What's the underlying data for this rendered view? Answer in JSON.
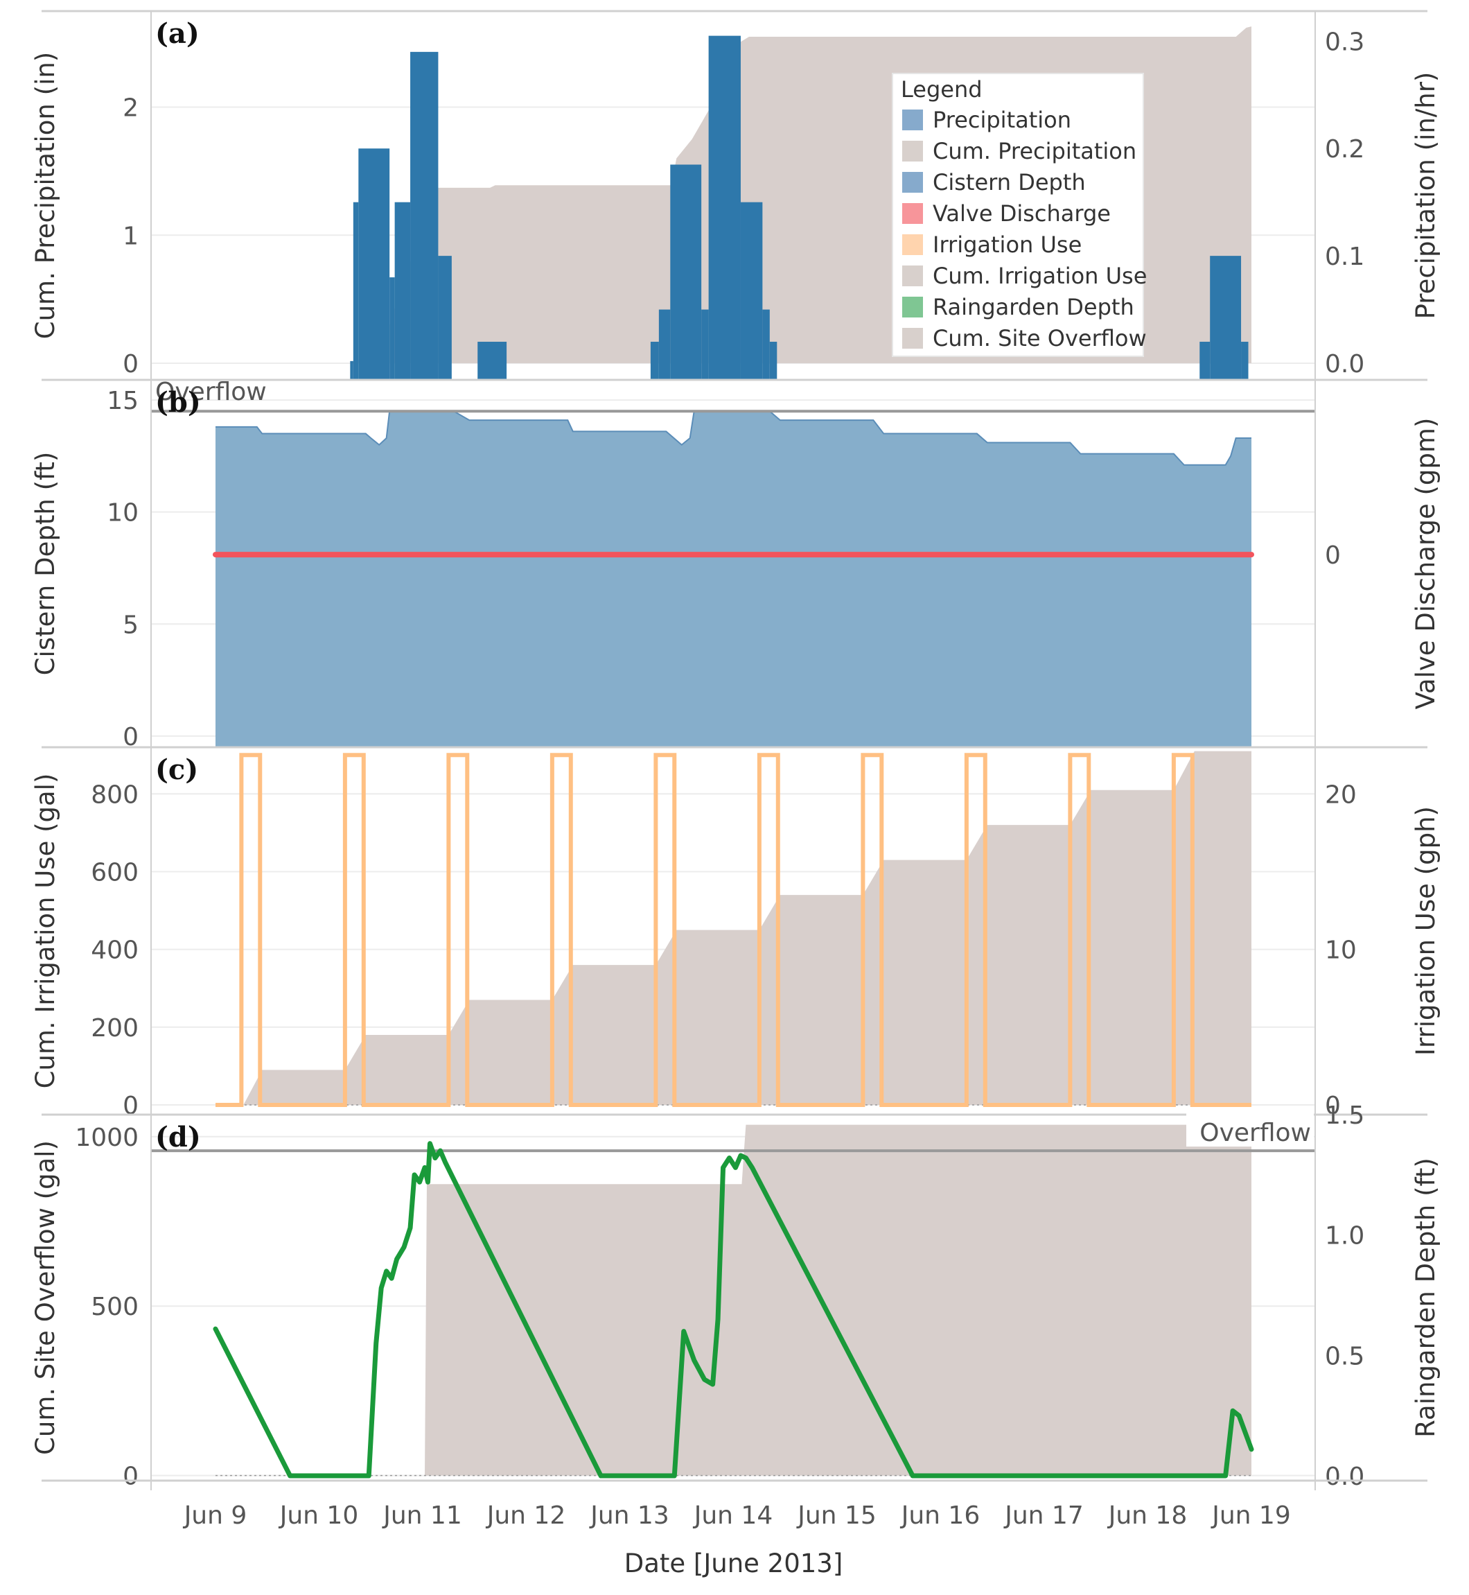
{
  "colors": {
    "precip": "#2e78ab",
    "cum": "#d8cfcc",
    "cistern": "#86aecb",
    "cisternLine": "#5b8db8",
    "valve": "#f2545c",
    "irrig": "#ffc083",
    "raingarden": "#1a9a3a",
    "grid": "#ececec",
    "frame": "#d0d0d0",
    "overflowLine": "#999999",
    "legend_swatches": {
      "precipitation": "#86aacc",
      "cum_precipitation": "#d8d0cc",
      "cistern_depth": "#86aacc",
      "valve_discharge": "#f7959a",
      "irrigation_use": "#ffd4ae",
      "cum_irrigation_use": "#d8d0cc",
      "raingarden_depth": "#7fc693",
      "cum_site_overflow": "#d8d0cc"
    }
  },
  "legend": {
    "title": "Legend",
    "items": [
      {
        "key": "precipitation",
        "label": "Precipitation"
      },
      {
        "key": "cum_precipitation",
        "label": "Cum. Precipitation"
      },
      {
        "key": "cistern_depth",
        "label": "Cistern Depth"
      },
      {
        "key": "valve_discharge",
        "label": "Valve Discharge"
      },
      {
        "key": "irrigation_use",
        "label": "Irrigation Use"
      },
      {
        "key": "cum_irrigation_use",
        "label": "Cum. Irrigation Use"
      },
      {
        "key": "raingarden_depth",
        "label": "Raingarden Depth"
      },
      {
        "key": "cum_site_overflow",
        "label": "Cum. Site Overflow"
      }
    ]
  },
  "chart_data": {
    "type": "multi-panel time series",
    "xlabel": "Date [June 2013]",
    "x_domain": [
      9,
      19
    ],
    "x_ticks": [
      {
        "v": 9,
        "label": "Jun 9"
      },
      {
        "v": 10,
        "label": "Jun 10"
      },
      {
        "v": 11,
        "label": "Jun 11"
      },
      {
        "v": 12,
        "label": "Jun 12"
      },
      {
        "v": 13,
        "label": "Jun 13"
      },
      {
        "v": 14,
        "label": "Jun 14"
      },
      {
        "v": 15,
        "label": "Jun 15"
      },
      {
        "v": 16,
        "label": "Jun 16"
      },
      {
        "v": 17,
        "label": "Jun 17"
      },
      {
        "v": 18,
        "label": "Jun 18"
      },
      {
        "v": 19,
        "label": "Jun 19"
      }
    ],
    "panels": [
      {
        "id": "a",
        "label": "(a)",
        "ylabel_left": "Cum. Precipitation (in)",
        "ylabel_right": "Precipitation (in/hr)",
        "ylim_left": [
          -0.13,
          2.75
        ],
        "ylim_right": [
          -0.0155,
          0.328
        ],
        "yticks_left": [
          {
            "v": 0,
            "label": "0"
          },
          {
            "v": 1,
            "label": "1"
          },
          {
            "v": 2,
            "label": "2"
          }
        ],
        "yticks_right": [
          {
            "v": 0.0,
            "label": "0.0"
          },
          {
            "v": 0.1,
            "label": "0.1"
          },
          {
            "v": 0.2,
            "label": "0.2"
          },
          {
            "v": 0.3,
            "label": "0.3"
          }
        ],
        "series": [
          {
            "name": "Cum. Precipitation",
            "kind": "area",
            "axis": "left",
            "points": [
              [
                9,
                0
              ],
              [
                10.3,
                0
              ],
              [
                10.6,
                0.1
              ],
              [
                10.8,
                0.6
              ],
              [
                11.05,
                1.2
              ],
              [
                11.15,
                1.37
              ],
              [
                11.65,
                1.37
              ],
              [
                11.7,
                1.39
              ],
              [
                13.4,
                1.39
              ],
              [
                13.45,
                1.6
              ],
              [
                13.6,
                1.75
              ],
              [
                13.85,
                2.1
              ],
              [
                14.05,
                2.5
              ],
              [
                14.15,
                2.55
              ],
              [
                18.85,
                2.55
              ],
              [
                18.95,
                2.62
              ],
              [
                19,
                2.63
              ]
            ]
          },
          {
            "name": "Precipitation",
            "kind": "bars",
            "axis": "right",
            "bars": [
              [
                10.3,
                10.33,
                0.002
              ],
              [
                10.33,
                10.38,
                0.15
              ],
              [
                10.38,
                10.68,
                0.2
              ],
              [
                10.68,
                10.73,
                0.08
              ],
              [
                10.73,
                10.88,
                0.15
              ],
              [
                10.88,
                11.15,
                0.29
              ],
              [
                11.15,
                11.28,
                0.1
              ],
              [
                11.53,
                11.81,
                0.02
              ],
              [
                13.2,
                13.28,
                0.02
              ],
              [
                13.28,
                13.39,
                0.05
              ],
              [
                13.39,
                13.69,
                0.185
              ],
              [
                13.69,
                13.76,
                0.05
              ],
              [
                13.76,
                14.07,
                0.305
              ],
              [
                14.07,
                14.28,
                0.15
              ],
              [
                14.28,
                14.35,
                0.05
              ],
              [
                14.35,
                14.42,
                0.02
              ],
              [
                18.5,
                18.6,
                0.02
              ],
              [
                18.6,
                18.9,
                0.1
              ],
              [
                18.9,
                18.97,
                0.02
              ]
            ]
          }
        ]
      },
      {
        "id": "b",
        "label": "(b)",
        "annotation": "Overflow",
        "overflow_level": 14.5,
        "ylabel_left": "Cistern Depth (ft)",
        "ylabel_right": "Valve Discharge (gpm)",
        "ylim_left": [
          -0.5,
          15.9
        ],
        "yticks_left": [
          {
            "v": 0,
            "label": "0"
          },
          {
            "v": 5,
            "label": "5"
          },
          {
            "v": 10,
            "label": "10"
          },
          {
            "v": 15,
            "label": "15"
          }
        ],
        "yticks_right": [
          {
            "label": "0",
            "left_equiv": 8.1
          }
        ],
        "series": [
          {
            "name": "Cistern Depth",
            "kind": "area",
            "axis": "left",
            "points": [
              [
                9,
                13.8
              ],
              [
                9.4,
                13.8
              ],
              [
                9.45,
                13.5
              ],
              [
                10.45,
                13.5
              ],
              [
                10.5,
                13.3
              ],
              [
                10.58,
                13.0
              ],
              [
                10.65,
                13.3
              ],
              [
                10.68,
                14.5
              ],
              [
                11.3,
                14.5
              ],
              [
                11.45,
                14.1
              ],
              [
                12.4,
                14.1
              ],
              [
                12.45,
                13.6
              ],
              [
                13.35,
                13.6
              ],
              [
                13.45,
                13.2
              ],
              [
                13.5,
                13.0
              ],
              [
                13.58,
                13.3
              ],
              [
                13.62,
                14.5
              ],
              [
                14.35,
                14.5
              ],
              [
                14.45,
                14.1
              ],
              [
                15.35,
                14.1
              ],
              [
                15.45,
                13.5
              ],
              [
                16.35,
                13.5
              ],
              [
                16.45,
                13.1
              ],
              [
                17.25,
                13.1
              ],
              [
                17.35,
                12.6
              ],
              [
                18.25,
                12.6
              ],
              [
                18.35,
                12.1
              ],
              [
                18.75,
                12.1
              ],
              [
                18.8,
                12.5
              ],
              [
                18.85,
                13.3
              ],
              [
                19,
                13.3
              ]
            ]
          },
          {
            "name": "Valve Discharge",
            "kind": "line",
            "axis": "right",
            "value": 0
          }
        ]
      },
      {
        "id": "c",
        "label": "(c)",
        "ylabel_left": "Cum. Irrigation Use (gal)",
        "ylabel_right": "Irrigation Use (gph)",
        "ylim_left": [
          -25,
          920
        ],
        "yticks_left": [
          {
            "v": 0,
            "label": "0"
          },
          {
            "v": 200,
            "label": "200"
          },
          {
            "v": 400,
            "label": "400"
          },
          {
            "v": 600,
            "label": "600"
          },
          {
            "v": 800,
            "label": "800"
          }
        ],
        "yticks_right": [
          {
            "v": 0,
            "label": "0"
          },
          {
            "v": 10,
            "label": "10"
          },
          {
            "v": 20,
            "label": "20"
          }
        ],
        "right_scale_gph_at_800gal": 20,
        "series": [
          {
            "name": "Cum. Irrigation Use",
            "kind": "area",
            "axis": "left",
            "points": [
              [
                9,
                0
              ],
              [
                9.27,
                0
              ],
              [
                9.45,
                90
              ],
              [
                10.25,
                90
              ],
              [
                10.45,
                180
              ],
              [
                11.25,
                180
              ],
              [
                11.45,
                270
              ],
              [
                12.25,
                270
              ],
              [
                12.45,
                360
              ],
              [
                13.25,
                360
              ],
              [
                13.45,
                450
              ],
              [
                14.25,
                450
              ],
              [
                14.45,
                540
              ],
              [
                15.25,
                540
              ],
              [
                15.45,
                630
              ],
              [
                16.25,
                630
              ],
              [
                16.45,
                720
              ],
              [
                17.25,
                720
              ],
              [
                17.45,
                810
              ],
              [
                18.25,
                810
              ],
              [
                18.45,
                910
              ],
              [
                19,
                910
              ]
            ]
          },
          {
            "name": "Irrigation Use",
            "kind": "square-wave",
            "axis": "right",
            "on_gph": 22.5,
            "off_gph": 0,
            "on_intervals": [
              [
                9.25,
                9.43
              ],
              [
                10.25,
                10.43
              ],
              [
                11.25,
                11.43
              ],
              [
                12.25,
                12.43
              ],
              [
                13.25,
                13.43
              ],
              [
                14.25,
                14.43
              ],
              [
                15.25,
                15.43
              ],
              [
                16.25,
                16.43
              ],
              [
                17.25,
                17.43
              ],
              [
                18.25,
                18.43
              ]
            ]
          }
        ]
      },
      {
        "id": "d",
        "label": "(d)",
        "annotation": "Overflow",
        "overflow_level": 1.35,
        "ylabel_left": "Cum. Site Overflow (gal)",
        "ylabel_right": "Raingarden Depth (ft)",
        "ylim_left": [
          -15,
          1065
        ],
        "ylim_right": [
          -0.02,
          1.5
        ],
        "yticks_left": [
          {
            "v": 0,
            "label": "0"
          },
          {
            "v": 500,
            "label": "500"
          },
          {
            "v": 1000,
            "label": "1000"
          }
        ],
        "yticks_right": [
          {
            "v": 0.0,
            "label": "0.0"
          },
          {
            "v": 0.5,
            "label": "0.5"
          },
          {
            "v": 1.0,
            "label": "1.0"
          },
          {
            "v": 1.5,
            "label": "1.5"
          }
        ],
        "series": [
          {
            "name": "Cum. Site Overflow",
            "kind": "area",
            "axis": "left",
            "points": [
              [
                9,
                0
              ],
              [
                11.02,
                0
              ],
              [
                11.04,
                860
              ],
              [
                14.08,
                860
              ],
              [
                14.1,
                950
              ],
              [
                14.12,
                1035
              ],
              [
                19,
                1035
              ]
            ]
          },
          {
            "name": "Raingarden Depth",
            "kind": "line",
            "axis": "right",
            "points": [
              [
                9,
                0.61
              ],
              [
                9.72,
                0.0
              ],
              [
                10.48,
                0.0
              ],
              [
                10.55,
                0.55
              ],
              [
                10.6,
                0.78
              ],
              [
                10.65,
                0.85
              ],
              [
                10.7,
                0.82
              ],
              [
                10.75,
                0.9
              ],
              [
                10.82,
                0.95
              ],
              [
                10.88,
                1.03
              ],
              [
                10.92,
                1.25
              ],
              [
                10.97,
                1.22
              ],
              [
                11.02,
                1.28
              ],
              [
                11.05,
                1.22
              ],
              [
                11.07,
                1.38
              ],
              [
                11.12,
                1.32
              ],
              [
                11.17,
                1.35
              ],
              [
                11.22,
                1.3
              ],
              [
                12.72,
                0.0
              ],
              [
                13.43,
                0.0
              ],
              [
                13.52,
                0.6
              ],
              [
                13.62,
                0.48
              ],
              [
                13.72,
                0.4
              ],
              [
                13.8,
                0.38
              ],
              [
                13.85,
                0.65
              ],
              [
                13.9,
                1.28
              ],
              [
                13.96,
                1.32
              ],
              [
                14.02,
                1.28
              ],
              [
                14.07,
                1.33
              ],
              [
                14.12,
                1.32
              ],
              [
                14.18,
                1.28
              ],
              [
                15.73,
                0.0
              ],
              [
                18.75,
                0.0
              ],
              [
                18.82,
                0.27
              ],
              [
                18.88,
                0.25
              ],
              [
                19,
                0.11
              ]
            ]
          }
        ]
      }
    ]
  }
}
